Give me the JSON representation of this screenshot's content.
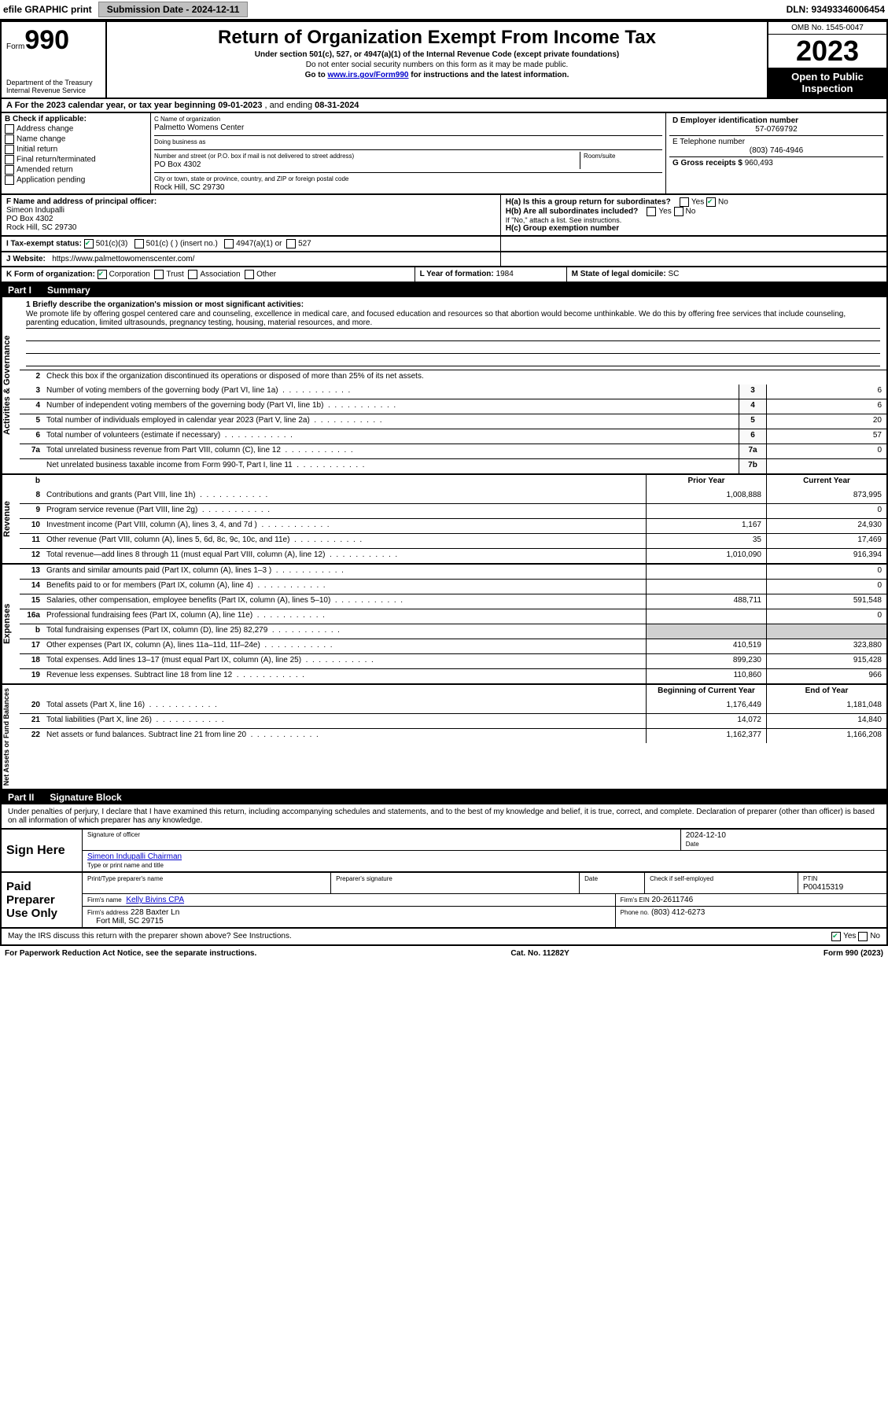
{
  "topbar": {
    "efile": "efile GRAPHIC print",
    "submission_label": "Submission Date - 2024-12-11",
    "dln_label": "DLN: 93493346006454"
  },
  "header": {
    "form_small": "Form",
    "form_big": "990",
    "title": "Return of Organization Exempt From Income Tax",
    "subtitle": "Under section 501(c), 527, or 4947(a)(1) of the Internal Revenue Code (except private foundations)",
    "note1": "Do not enter social security numbers on this form as it may be made public.",
    "note2_pre": "Go to ",
    "note2_link": "www.irs.gov/Form990",
    "note2_post": " for instructions and the latest information.",
    "omb": "OMB No. 1545-0047",
    "year": "2023",
    "public1": "Open to Public",
    "public2": "Inspection",
    "dept": "Department of the Treasury",
    "irs": "Internal Revenue Service"
  },
  "line_a": {
    "prefix": "A For the 2023 calendar year, or tax year beginning ",
    "start": "09-01-2023",
    "mid": " , and ending ",
    "end": "08-31-2024"
  },
  "section_b": {
    "label": "B Check if applicable:",
    "opts": [
      "Address change",
      "Name change",
      "Initial return",
      "Final return/terminated",
      "Amended return",
      "Application pending"
    ]
  },
  "section_c": {
    "label": "C Name of organization",
    "name": "Palmetto Womens Center",
    "dba_label": "Doing business as",
    "addr_label": "Number and street (or P.O. box if mail is not delivered to street address)",
    "room": "Room/suite",
    "addr": "PO Box 4302",
    "city_label": "City or town, state or province, country, and ZIP or foreign postal code",
    "city": "Rock Hill, SC  29730"
  },
  "section_d": {
    "label": "D Employer identification number",
    "ein": "57-0769792",
    "e_label": "E Telephone number",
    "phone": "(803) 746-4946",
    "g_label": "G Gross receipts $ ",
    "g_val": "960,493"
  },
  "section_f": {
    "label": "F Name and address of principal officer:",
    "name": "Simeon Indupalli",
    "addr": "PO Box 4302",
    "city": "Rock Hill, SC  29730",
    "ha": "H(a)  Is this a group return for subordinates?",
    "ha_yes": "Yes",
    "ha_no": "No",
    "hb": "H(b)  Are all subordinates included?",
    "hb_note": "If \"No,\" attach a list. See instructions.",
    "hc": "H(c)  Group exemption number "
  },
  "section_i": {
    "label": "I   Tax-exempt status:",
    "o1": "501(c)(3)",
    "o2": "501(c) (   ) (insert no.)",
    "o3": "4947(a)(1) or",
    "o4": "527"
  },
  "section_j": {
    "label": "J   Website:",
    "url": "https://www.palmettowomenscenter.com/"
  },
  "section_k": {
    "label": "K Form of organization:",
    "opts": [
      "Corporation",
      "Trust",
      "Association",
      "Other"
    ],
    "l_label": "L Year of formation: ",
    "l_val": "1984",
    "m_label": "M State of legal domicile: ",
    "m_val": "SC"
  },
  "part1": {
    "label": "Part I",
    "title": "Summary",
    "q1_label": "1   Briefly describe the organization's mission or most significant activities:",
    "mission": "We promote life by offering gospel centered care and counseling, excellence in medical care, and focused education and resources so that abortion would become unthinkable. We do this by offering free services that include counseling, parenting education, limited ultrasounds, pregnancy testing, housing, material resources, and more.",
    "q2": "Check this box          if the organization discontinued its operations or disposed of more than 25% of its net assets.",
    "rows_gov": [
      {
        "n": "3",
        "d": "Number of voting members of the governing body (Part VI, line 1a)",
        "c": "3",
        "v": "6"
      },
      {
        "n": "4",
        "d": "Number of independent voting members of the governing body (Part VI, line 1b)",
        "c": "4",
        "v": "6"
      },
      {
        "n": "5",
        "d": "Total number of individuals employed in calendar year 2023 (Part V, line 2a)",
        "c": "5",
        "v": "20"
      },
      {
        "n": "6",
        "d": "Total number of volunteers (estimate if necessary)",
        "c": "6",
        "v": "57"
      },
      {
        "n": "7a",
        "d": "Total unrelated business revenue from Part VIII, column (C), line 12",
        "c": "7a",
        "v": "0"
      },
      {
        "n": "",
        "d": "Net unrelated business taxable income from Form 990-T, Part I, line 11",
        "c": "7b",
        "v": ""
      }
    ],
    "col_prior": "Prior Year",
    "col_curr": "Current Year",
    "rows_rev": [
      {
        "n": "8",
        "d": "Contributions and grants (Part VIII, line 1h)",
        "p": "1,008,888",
        "c": "873,995"
      },
      {
        "n": "9",
        "d": "Program service revenue (Part VIII, line 2g)",
        "p": "",
        "c": "0"
      },
      {
        "n": "10",
        "d": "Investment income (Part VIII, column (A), lines 3, 4, and 7d )",
        "p": "1,167",
        "c": "24,930"
      },
      {
        "n": "11",
        "d": "Other revenue (Part VIII, column (A), lines 5, 6d, 8c, 9c, 10c, and 11e)",
        "p": "35",
        "c": "17,469"
      },
      {
        "n": "12",
        "d": "Total revenue—add lines 8 through 11 (must equal Part VIII, column (A), line 12)",
        "p": "1,010,090",
        "c": "916,394"
      }
    ],
    "rows_exp": [
      {
        "n": "13",
        "d": "Grants and similar amounts paid (Part IX, column (A), lines 1–3 )",
        "p": "",
        "c": "0"
      },
      {
        "n": "14",
        "d": "Benefits paid to or for members (Part IX, column (A), line 4)",
        "p": "",
        "c": "0"
      },
      {
        "n": "15",
        "d": "Salaries, other compensation, employee benefits (Part IX, column (A), lines 5–10)",
        "p": "488,711",
        "c": "591,548"
      },
      {
        "n": "16a",
        "d": "Professional fundraising fees (Part IX, column (A), line 11e)",
        "p": "",
        "c": "0"
      },
      {
        "n": "b",
        "d": "Total fundraising expenses (Part IX, column (D), line 25) 82,279",
        "p": "GREY",
        "c": "GREY"
      },
      {
        "n": "17",
        "d": "Other expenses (Part IX, column (A), lines 11a–11d, 11f–24e)",
        "p": "410,519",
        "c": "323,880"
      },
      {
        "n": "18",
        "d": "Total expenses. Add lines 13–17 (must equal Part IX, column (A), line 25)",
        "p": "899,230",
        "c": "915,428"
      },
      {
        "n": "19",
        "d": "Revenue less expenses. Subtract line 18 from line 12",
        "p": "110,860",
        "c": "966"
      }
    ],
    "col_boy": "Beginning of Current Year",
    "col_eoy": "End of Year",
    "rows_net": [
      {
        "n": "20",
        "d": "Total assets (Part X, line 16)",
        "p": "1,176,449",
        "c": "1,181,048"
      },
      {
        "n": "21",
        "d": "Total liabilities (Part X, line 26)",
        "p": "14,072",
        "c": "14,840"
      },
      {
        "n": "22",
        "d": "Net assets or fund balances. Subtract line 21 from line 20",
        "p": "1,162,377",
        "c": "1,166,208"
      }
    ],
    "side_gov": "Activities & Governance",
    "side_rev": "Revenue",
    "side_exp": "Expenses",
    "side_net": "Net Assets or Fund Balances"
  },
  "part2": {
    "label": "Part II",
    "title": "Signature Block",
    "perjury": "Under penalties of perjury, I declare that I have examined this return, including accompanying schedules and statements, and to the best of my knowledge and belief, it is true, correct, and complete. Declaration of preparer (other than officer) is based on all information of which preparer has any knowledge.",
    "sign_here": "Sign Here",
    "sig_officer": "Signature of officer",
    "date": "Date",
    "date_val": "2024-12-10",
    "name_title": "Simeon Indupalli  Chairman",
    "name_title_label": "Type or print name and title",
    "paid": "Paid Preparer Use Only",
    "prep_name_label": "Print/Type preparer's name",
    "prep_sig_label": "Preparer's signature",
    "check_label": "Check          if self-employed",
    "ptin_label": "PTIN",
    "ptin": "P00415319",
    "firm_name_label": "Firm's name",
    "firm_name": "Kelly Bivins CPA",
    "firm_ein_label": "Firm's EIN",
    "firm_ein": "20-2611746",
    "firm_addr_label": "Firm's address",
    "firm_addr": "228 Baxter Ln",
    "firm_city": "Fort Mill, SC  29715",
    "phone_label": "Phone no.",
    "phone": "(803) 412-6273",
    "discuss": "May the IRS discuss this return with the preparer shown above? See Instructions.",
    "yes": "Yes",
    "no": "No"
  },
  "footer": {
    "left": "For Paperwork Reduction Act Notice, see the separate instructions.",
    "mid": "Cat. No. 11282Y",
    "right": "Form 990 (2023)"
  }
}
